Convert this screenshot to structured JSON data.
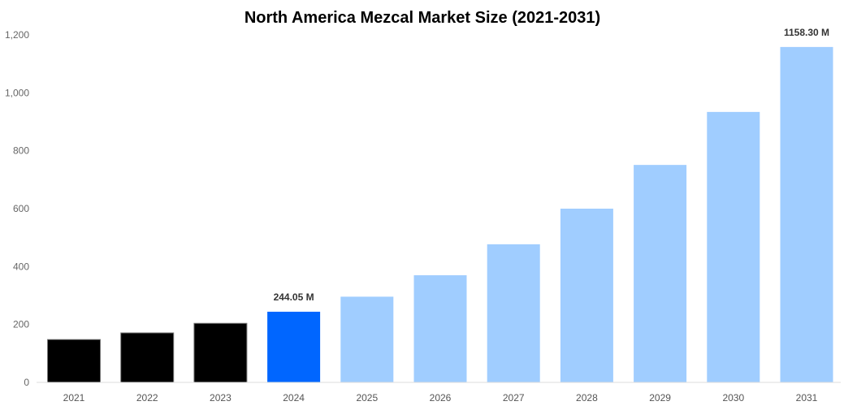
{
  "chart_data": {
    "type": "bar",
    "title": "North America Mezcal Market Size (2021-2031)",
    "xlabel": "",
    "ylabel": "",
    "ylim": [
      0,
      1200
    ],
    "yticks": [
      "0",
      "200",
      "400",
      "600",
      "800",
      "1,000",
      "1,200"
    ],
    "ytick_values": [
      0,
      200,
      400,
      600,
      800,
      1000,
      1200
    ],
    "grid": false,
    "categories": [
      "2021",
      "2022",
      "2023",
      "2024",
      "2025",
      "2026",
      "2027",
      "2028",
      "2029",
      "2030",
      "2031"
    ],
    "values": [
      148,
      171,
      204,
      244.05,
      296,
      370,
      477,
      600,
      751,
      934,
      1158.3
    ],
    "colors": [
      "#000000",
      "#000000",
      "#000000",
      "#0066ff",
      "#a0cdff",
      "#a0cdff",
      "#a0cdff",
      "#a0cdff",
      "#a0cdff",
      "#a0cdff",
      "#a0cdff"
    ],
    "data_labels": [
      {
        "category": "2024",
        "text": "244.05 M"
      },
      {
        "category": "2031",
        "text": "1158.30 M"
      }
    ]
  }
}
